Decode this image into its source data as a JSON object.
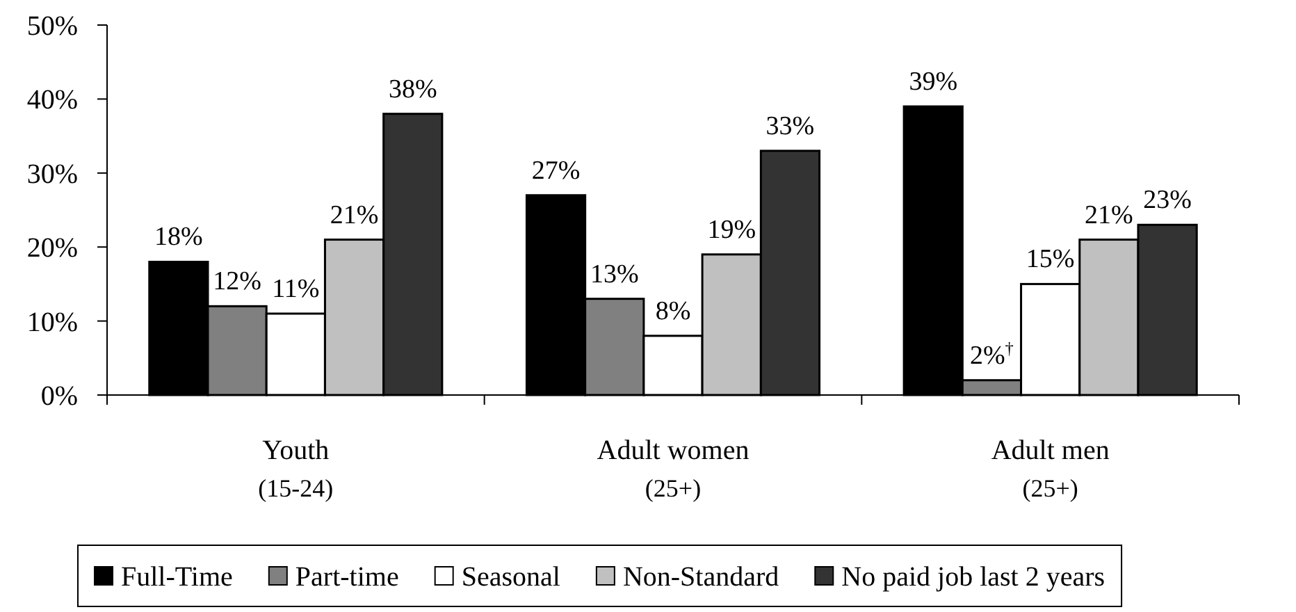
{
  "chart_data": {
    "type": "bar",
    "categories": [
      "Youth\n(15-24)",
      "Adult women\n(25+)",
      "Adult men\n(25+)"
    ],
    "series": [
      {
        "name": "Full-Time",
        "color": "#000000",
        "values": [
          18,
          27,
          39
        ],
        "value_labels": [
          "18%",
          "27%",
          "39%"
        ]
      },
      {
        "name": "Part-time",
        "color": "#808080",
        "values": [
          12,
          13,
          2
        ],
        "value_labels": [
          "12%",
          "13%",
          "2%$^{†}$"
        ]
      },
      {
        "name": "Seasonal",
        "color": "#ffffff",
        "values": [
          11,
          8,
          15
        ],
        "value_labels": [
          "11%",
          "8%",
          "15%"
        ]
      },
      {
        "name": "Non-Standard",
        "color": "#c0c0c0",
        "values": [
          21,
          19,
          21
        ],
        "value_labels": [
          "21%",
          "19%",
          "21%"
        ]
      },
      {
        "name": "No paid job last 2 years",
        "color": "#333333",
        "values": [
          38,
          33,
          23
        ],
        "value_labels": [
          "38%",
          "33%",
          "23%"
        ]
      }
    ],
    "ylim": [
      0,
      50
    ],
    "yticks": [
      {
        "value": 0,
        "label": "0%"
      },
      {
        "value": 10,
        "label": "10%"
      },
      {
        "value": 20,
        "label": "20%"
      },
      {
        "value": 30,
        "label": "30%"
      },
      {
        "value": 40,
        "label": "40%"
      },
      {
        "value": 50,
        "label": "50%"
      }
    ],
    "legend": "bottom"
  }
}
